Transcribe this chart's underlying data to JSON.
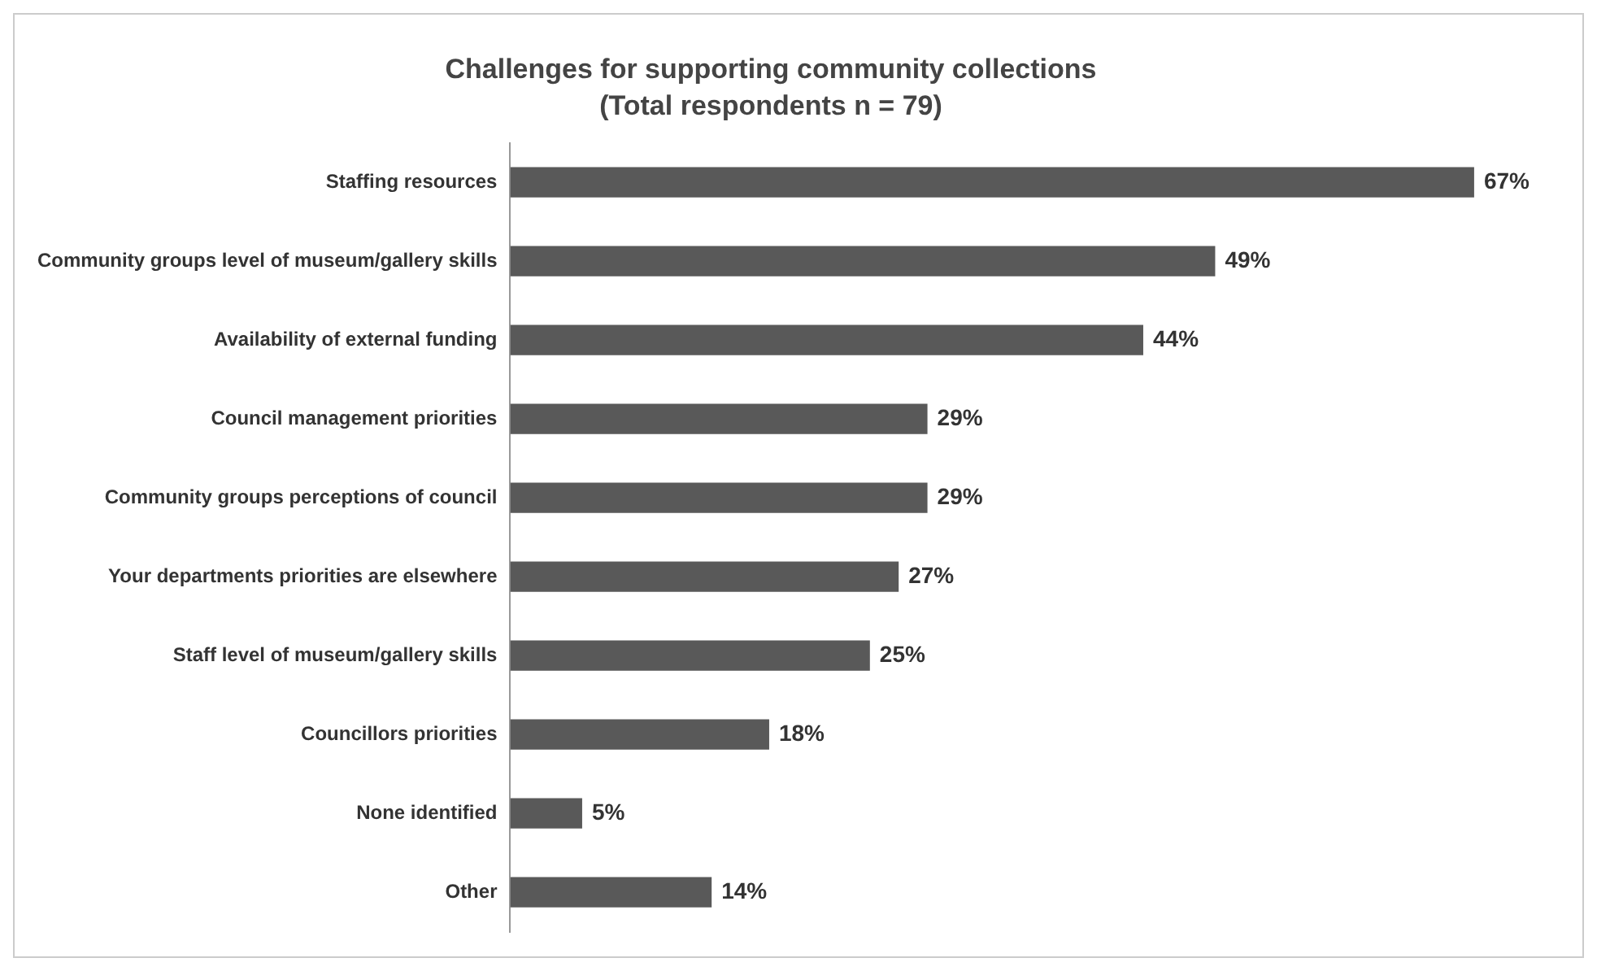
{
  "chart_data": {
    "type": "bar",
    "orientation": "horizontal",
    "title": "Challenges for supporting community collections",
    "subtitle": "(Total respondents n = 79)",
    "categories": [
      "Staffing resources",
      "Community groups level of museum/gallery skills",
      "Availability of external funding",
      "Council management priorities",
      "Community groups perceptions of council",
      "Your departments priorities are elsewhere",
      "Staff level of museum/gallery skills",
      "Councillors priorities",
      "None identified",
      "Other"
    ],
    "values": [
      67,
      49,
      44,
      29,
      29,
      27,
      25,
      18,
      5,
      14
    ],
    "value_labels": [
      "67%",
      "49%",
      "44%",
      "29%",
      "29%",
      "27%",
      "25%",
      "18%",
      "5%",
      "14%"
    ],
    "color": "#595959",
    "legend": false
  }
}
